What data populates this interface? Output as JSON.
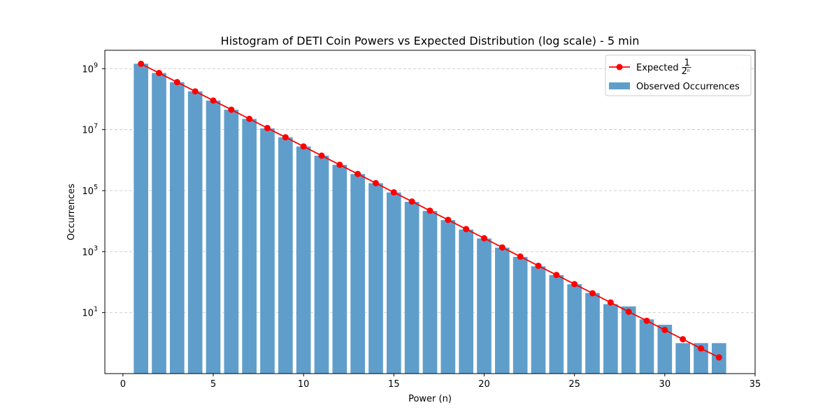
{
  "chart_data": {
    "type": "bar",
    "title": "Histogram of DETI Coin Powers vs Expected Distribution (log scale) - 5 min",
    "xlabel": "Power (n)",
    "ylabel": "Occurrences",
    "xlim": [
      -1,
      35
    ],
    "ylim": [
      0.1,
      4000000000
    ],
    "y_scale": "log",
    "x_ticks": [
      "0",
      "5",
      "10",
      "15",
      "20",
      "25",
      "30",
      "35"
    ],
    "y_ticks": [
      {
        "base": "10",
        "exp": "1"
      },
      {
        "base": "10",
        "exp": "3"
      },
      {
        "base": "10",
        "exp": "5"
      },
      {
        "base": "10",
        "exp": "7"
      },
      {
        "base": "10",
        "exp": "9"
      }
    ],
    "grid": "y-dashed",
    "legend_position": "top-right",
    "x": [
      1,
      2,
      3,
      4,
      5,
      6,
      7,
      8,
      9,
      10,
      11,
      12,
      13,
      14,
      15,
      16,
      17,
      18,
      19,
      20,
      21,
      22,
      23,
      24,
      25,
      26,
      27,
      28,
      29,
      30,
      31,
      32,
      33
    ],
    "series": [
      {
        "name": "Observed Occurrences",
        "kind": "bar",
        "color": "#5f9ecb",
        "values": [
          1450000000,
          720000000,
          360000000,
          180000000,
          90000000,
          45000000,
          22500000,
          11000000,
          5600000,
          2800000,
          1400000,
          700000,
          350000,
          175000,
          87000,
          43000,
          21500,
          10800,
          5300,
          2700,
          1350,
          670,
          330,
          170,
          85,
          44,
          19,
          16,
          6,
          4,
          1,
          1,
          1
        ]
      },
      {
        "name": "Expected",
        "name_fraction": {
          "num": "1",
          "den_base": "2",
          "den_exp": "n"
        },
        "kind": "line",
        "color": "#ff0000",
        "values": [
          1440000000,
          720000000,
          360000000,
          180000000,
          90000000,
          45000000,
          22500000,
          11250000,
          5620000,
          2810000,
          1400000,
          703000,
          352000,
          176000,
          87900,
          43900,
          22000,
          11000,
          5490,
          2750,
          1370,
          687,
          343,
          172,
          86,
          43,
          21.5,
          10.7,
          5.4,
          2.7,
          1.34,
          0.67,
          0.34
        ]
      }
    ]
  }
}
